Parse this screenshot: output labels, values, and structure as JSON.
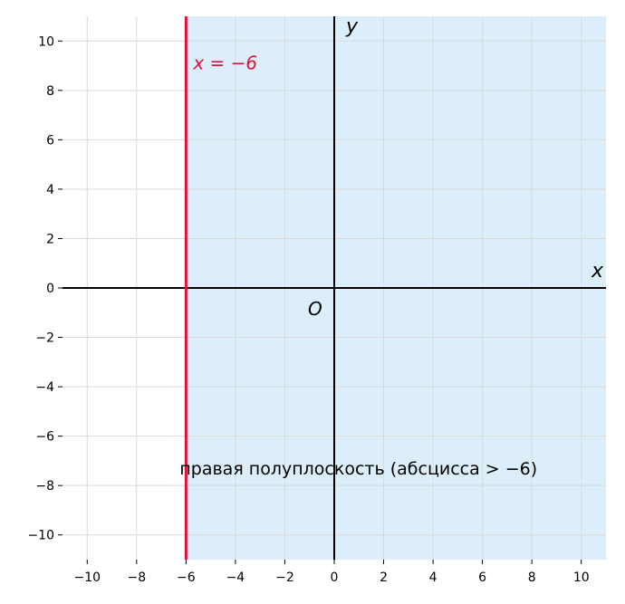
{
  "chart_data": {
    "type": "line",
    "title": "",
    "xlabel": "x",
    "ylabel": "y",
    "origin_label": "O",
    "xlim": [
      -11,
      11
    ],
    "ylim": [
      -11,
      11
    ],
    "x_ticks": [
      -10,
      -8,
      -6,
      -4,
      -2,
      0,
      2,
      4,
      6,
      8,
      10
    ],
    "y_ticks": [
      -10,
      -8,
      -6,
      -4,
      -2,
      0,
      2,
      4,
      6,
      8,
      10
    ],
    "x_tick_labels": [
      "−10",
      "−8",
      "−6",
      "−4",
      "−2",
      "0",
      "2",
      "4",
      "6",
      "8",
      "10"
    ],
    "y_tick_labels": [
      "−10",
      "−8",
      "−6",
      "−4",
      "−2",
      "0",
      "2",
      "4",
      "6",
      "8",
      "10"
    ],
    "grid": true,
    "vertical_line": {
      "x": -6,
      "label": "x = −6",
      "color": "#dc143c"
    },
    "shaded_region": {
      "x_from": -6,
      "x_to": 11,
      "color": "#dbeef9",
      "label": "правая полуплоскость (абсцисса > −6)",
      "label_at": [
        -6,
        -7.3
      ]
    }
  }
}
